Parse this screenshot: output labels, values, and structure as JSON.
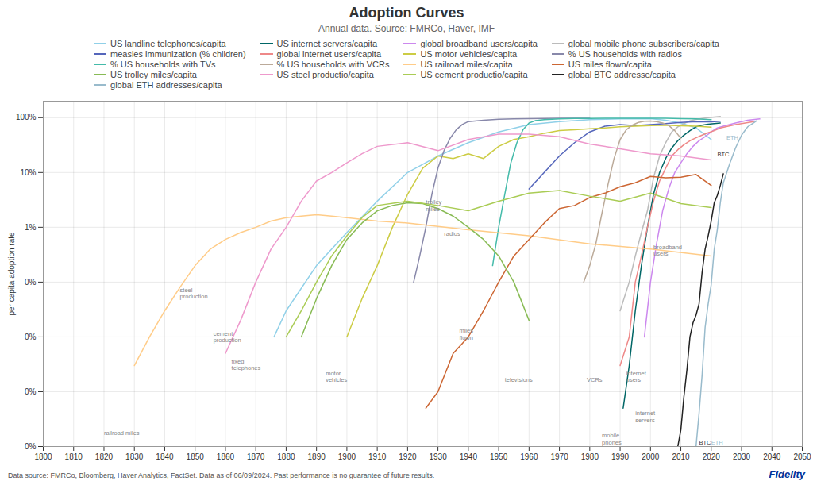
{
  "chart_data": {
    "type": "line",
    "title": "Adoption Curves",
    "subtitle": "Annual data.  Source: FMRCo, Haver, IMF",
    "y_label": "per capita adoption rate",
    "footnote": "Data source: FMRCo, Bloomberg, Haver Analytics, FactSet. Data as of 06/09/2024. Past performance is no guarantee of future results.",
    "brand": "Fidelity",
    "log": "y",
    "grid": true,
    "legend": "top",
    "xlim": [
      1800,
      2050
    ],
    "xticks": [
      1800,
      1810,
      1820,
      1830,
      1840,
      1850,
      1860,
      1870,
      1880,
      1890,
      1900,
      1910,
      1920,
      1930,
      1940,
      1950,
      1960,
      1970,
      1980,
      1990,
      2000,
      2010,
      2020,
      2030,
      2040,
      2050
    ],
    "ylim": [
      1e-06,
      2.0
    ],
    "yticks": [
      {
        "value": 1e-06,
        "label": "0%"
      },
      {
        "value": 1e-05,
        "label": "0%"
      },
      {
        "value": 0.0001,
        "label": "0%"
      },
      {
        "value": 0.001,
        "label": "0%"
      },
      {
        "value": 0.01,
        "label": "1%"
      },
      {
        "value": 0.1,
        "label": "10%"
      },
      {
        "value": 1.0,
        "label": "100%"
      }
    ],
    "series": [
      {
        "name": "US landline telephones/capita",
        "color": "#90D0E8",
        "x": [
          1876,
          1880,
          1890,
          1900,
          1910,
          1920,
          1930,
          1940,
          1950,
          1960,
          1970,
          1975,
          1980,
          1985,
          1990,
          2000,
          2005,
          2010,
          2015,
          2020
        ],
        "values": [
          0.0001,
          0.0003,
          0.002,
          0.008,
          0.03,
          0.1,
          0.2,
          0.35,
          0.55,
          0.75,
          0.85,
          0.88,
          0.92,
          0.94,
          0.95,
          0.96,
          0.9,
          0.8,
          0.65,
          0.4
        ]
      },
      {
        "name": "US internet servers/capita",
        "color": "#006666",
        "x": [
          1991,
          1993,
          1995,
          1997,
          1999,
          2001,
          2003,
          2005,
          2007,
          2009,
          2011,
          2013,
          2015,
          2017,
          2019,
          2021,
          2023
        ],
        "values": [
          5e-06,
          3e-05,
          0.0003,
          0.002,
          0.01,
          0.04,
          0.1,
          0.18,
          0.28,
          0.38,
          0.48,
          0.58,
          0.68,
          0.73,
          0.76,
          0.78,
          0.8
        ]
      },
      {
        "name": "global broadband users/capita",
        "color": "#CC88EE",
        "x": [
          1998,
          2000,
          2002,
          2004,
          2006,
          2008,
          2010,
          2012,
          2014,
          2016,
          2018,
          2020,
          2022,
          2024,
          2028,
          2032,
          2036
        ],
        "values": [
          0.0001,
          0.001,
          0.005,
          0.02,
          0.05,
          0.1,
          0.15,
          0.22,
          0.3,
          0.38,
          0.45,
          0.55,
          0.65,
          0.7,
          0.8,
          0.9,
          0.95
        ]
      },
      {
        "name": "global mobile phone subscribers/capita",
        "color": "#BBBBBB",
        "x": [
          1990,
          1993,
          1995,
          1997,
          1999,
          2001,
          2003,
          2005,
          2007,
          2009,
          2011,
          2013,
          2015,
          2017,
          2019,
          2021,
          2023
        ],
        "values": [
          0.0003,
          0.001,
          0.003,
          0.008,
          0.02,
          0.08,
          0.2,
          0.35,
          0.55,
          0.68,
          0.78,
          0.88,
          0.93,
          0.97,
          1.0,
          1.03,
          1.05
        ]
      },
      {
        "name": "measles immunization (% children)",
        "color": "#5566BB",
        "x": [
          1960,
          1965,
          1970,
          1975,
          1980,
          1985,
          1990,
          1995,
          2000,
          2005,
          2010,
          2015,
          2020,
          2023
        ],
        "values": [
          0.05,
          0.1,
          0.2,
          0.35,
          0.55,
          0.7,
          0.75,
          0.72,
          0.75,
          0.78,
          0.82,
          0.85,
          0.84,
          0.86
        ]
      },
      {
        "name": "global internet users/capita",
        "color": "#EE8888",
        "x": [
          1990,
          1993,
          1995,
          1997,
          1999,
          2001,
          2003,
          2005,
          2007,
          2009,
          2011,
          2013,
          2015,
          2017,
          2019,
          2021,
          2023,
          2028,
          2034
        ],
        "values": [
          3e-05,
          0.0001,
          0.001,
          0.003,
          0.01,
          0.03,
          0.07,
          0.12,
          0.2,
          0.26,
          0.32,
          0.38,
          0.43,
          0.48,
          0.53,
          0.58,
          0.65,
          0.75,
          0.85
        ]
      },
      {
        "name": "US motor vehicles/capita",
        "color": "#CCCC44",
        "x": [
          1900,
          1905,
          1910,
          1915,
          1920,
          1925,
          1930,
          1935,
          1940,
          1945,
          1950,
          1955,
          1960,
          1965,
          1970,
          1975,
          1980,
          1985,
          1990,
          1995,
          2000,
          2005,
          2010,
          2015,
          2020
        ],
        "values": [
          0.0001,
          0.0005,
          0.002,
          0.01,
          0.04,
          0.12,
          0.2,
          0.18,
          0.22,
          0.18,
          0.3,
          0.4,
          0.45,
          0.52,
          0.58,
          0.6,
          0.63,
          0.65,
          0.68,
          0.7,
          0.72,
          0.73,
          0.71,
          0.7,
          0.67
        ]
      },
      {
        "name": "% US households with radios",
        "color": "#8888AA",
        "x": [
          1922,
          1924,
          1926,
          1928,
          1930,
          1932,
          1934,
          1936,
          1938,
          1940,
          1945,
          1950,
          1955,
          1960,
          1965,
          1970,
          1975,
          1980
        ],
        "values": [
          0.001,
          0.003,
          0.01,
          0.04,
          0.12,
          0.25,
          0.42,
          0.6,
          0.75,
          0.85,
          0.9,
          0.94,
          0.95,
          0.96,
          0.97,
          0.98,
          0.98,
          0.98
        ]
      },
      {
        "name": "% US households with TVs",
        "color": "#44BBAA",
        "x": [
          1948,
          1950,
          1952,
          1954,
          1956,
          1958,
          1960,
          1962,
          1965,
          1970,
          1975,
          1980,
          1985,
          1990,
          1995,
          2000,
          2005,
          2010,
          2015,
          2020
        ],
        "values": [
          0.002,
          0.01,
          0.04,
          0.15,
          0.35,
          0.6,
          0.8,
          0.88,
          0.92,
          0.95,
          0.97,
          0.97,
          0.98,
          0.98,
          0.98,
          0.98,
          0.98,
          0.96,
          0.95,
          0.92
        ]
      },
      {
        "name": "% US households with VCRs",
        "color": "#BBAA99",
        "x": [
          1978,
          1980,
          1982,
          1984,
          1986,
          1988,
          1990,
          1992,
          1994,
          1996,
          1998,
          2000,
          2002,
          2004,
          2006,
          2008,
          2010
        ],
        "values": [
          0.001,
          0.002,
          0.005,
          0.018,
          0.06,
          0.18,
          0.4,
          0.6,
          0.73,
          0.82,
          0.86,
          0.87,
          0.85,
          0.8,
          0.72,
          0.58,
          0.42
        ]
      },
      {
        "name": "US railroad miles/capita",
        "color": "#FFCC88",
        "x": [
          1830,
          1835,
          1840,
          1845,
          1850,
          1855,
          1860,
          1865,
          1870,
          1875,
          1880,
          1885,
          1890,
          1895,
          1900,
          1910,
          1920,
          1940,
          1960,
          1980,
          2000,
          2020
        ],
        "values": [
          3e-05,
          0.0001,
          0.0003,
          0.0008,
          0.002,
          0.004,
          0.006,
          0.008,
          0.01,
          0.013,
          0.015,
          0.016,
          0.017,
          0.016,
          0.015,
          0.013,
          0.012,
          0.009,
          0.007,
          0.005,
          0.004,
          0.003
        ]
      },
      {
        "name": "US miles flown/capita",
        "color": "#CC6633",
        "x": [
          1926,
          1930,
          1935,
          1940,
          1945,
          1950,
          1955,
          1960,
          1965,
          1970,
          1975,
          1980,
          1985,
          1990,
          1995,
          2000,
          2005,
          2010,
          2015,
          2020
        ],
        "values": [
          5e-06,
          1e-05,
          5e-05,
          0.0001,
          0.0003,
          0.001,
          0.003,
          0.006,
          0.012,
          0.022,
          0.025,
          0.035,
          0.042,
          0.055,
          0.065,
          0.085,
          0.08,
          0.082,
          0.092,
          0.058
        ]
      },
      {
        "name": "US trolley miles/capita",
        "color": "#88BB55",
        "x": [
          1885,
          1890,
          1895,
          1900,
          1905,
          1910,
          1915,
          1920,
          1925,
          1930,
          1935,
          1940,
          1945,
          1950,
          1955,
          1960
        ],
        "values": [
          0.0001,
          0.0005,
          0.002,
          0.006,
          0.012,
          0.02,
          0.025,
          0.028,
          0.027,
          0.022,
          0.016,
          0.01,
          0.006,
          0.003,
          0.001,
          0.0002
        ]
      },
      {
        "name": "US steel productio/capita",
        "color": "#EE99CC",
        "x": [
          1860,
          1865,
          1870,
          1875,
          1880,
          1885,
          1890,
          1895,
          1900,
          1905,
          1910,
          1920,
          1930,
          1940,
          1950,
          1960,
          1970,
          1980,
          1990,
          2000,
          2010,
          2020
        ],
        "values": [
          5e-05,
          0.0002,
          0.001,
          0.004,
          0.01,
          0.03,
          0.07,
          0.1,
          0.15,
          0.22,
          0.3,
          0.35,
          0.25,
          0.4,
          0.5,
          0.5,
          0.45,
          0.33,
          0.27,
          0.22,
          0.2,
          0.17
        ]
      },
      {
        "name": "US cement productio/capita",
        "color": "#AACC55",
        "x": [
          1880,
          1885,
          1890,
          1895,
          1900,
          1905,
          1910,
          1920,
          1930,
          1940,
          1950,
          1960,
          1970,
          1980,
          1990,
          2000,
          2010,
          2020
        ],
        "values": [
          0.0001,
          0.0003,
          0.001,
          0.003,
          0.007,
          0.015,
          0.025,
          0.03,
          0.025,
          0.02,
          0.03,
          0.042,
          0.047,
          0.037,
          0.03,
          0.042,
          0.027,
          0.023
        ]
      },
      {
        "name": "global BTC addresse/capita",
        "color": "#222222",
        "x": [
          2009,
          2010,
          2011,
          2012,
          2013,
          2014,
          2015,
          2016,
          2017,
          2018,
          2019,
          2020,
          2021,
          2022,
          2023,
          2024
        ],
        "values": [
          1e-06,
          2e-06,
          8e-06,
          2.5e-05,
          0.0001,
          0.00018,
          0.00025,
          0.0004,
          0.0015,
          0.004,
          0.007,
          0.013,
          0.028,
          0.038,
          0.058,
          0.095
        ]
      },
      {
        "name": "global ETH addresses/capita",
        "color": "#99BBCC",
        "x": [
          2015,
          2016,
          2017,
          2018,
          2019,
          2020,
          2021,
          2022,
          2023,
          2024,
          2026,
          2028,
          2030,
          2032,
          2035
        ],
        "values": [
          1e-06,
          4e-06,
          2e-05,
          0.00015,
          0.0004,
          0.0009,
          0.004,
          0.009,
          0.028,
          0.065,
          0.14,
          0.28,
          0.48,
          0.68,
          0.88
        ]
      }
    ],
    "annotations": [
      {
        "text": "railroad miles",
        "x": 1820,
        "y": 1.6e-06,
        "color": "#888888"
      },
      {
        "text": "steel\nproduction",
        "x": 1845,
        "y": 0.0005,
        "color": "#888888"
      },
      {
        "text": "cement\nproduction",
        "x": 1856,
        "y": 8e-05,
        "color": "#888888"
      },
      {
        "text": "fixed\ntelephones",
        "x": 1862,
        "y": 2.5e-05,
        "color": "#888888"
      },
      {
        "text": "motor\nvehicles",
        "x": 1893,
        "y": 1.5e-05,
        "color": "#888888"
      },
      {
        "text": "trolley\nmiles",
        "x": 1926,
        "y": 0.02,
        "color": "#888888"
      },
      {
        "text": "radios",
        "x": 1932,
        "y": 0.007,
        "color": "#888888"
      },
      {
        "text": "miles\nflown",
        "x": 1937,
        "y": 9e-05,
        "color": "#888888"
      },
      {
        "text": "televisions",
        "x": 1952,
        "y": 1.5e-05,
        "color": "#888888"
      },
      {
        "text": "VCRs",
        "x": 1979,
        "y": 1.5e-05,
        "color": "#888888"
      },
      {
        "text": "internet\nusers",
        "x": 1992,
        "y": 1.5e-05,
        "color": "#888888"
      },
      {
        "text": "internet\nservers",
        "x": 1995,
        "y": 2.8e-06,
        "color": "#888888"
      },
      {
        "text": "mobile\nphones",
        "x": 1984,
        "y": 1.1e-06,
        "color": "#888888"
      },
      {
        "text": "broadband\nusers",
        "x": 2001,
        "y": 0.003,
        "color": "#888888"
      },
      {
        "text": "BTC",
        "x": 2016,
        "y": 1.1e-06,
        "color": "#333333"
      },
      {
        "text": "ETH",
        "x": 2020,
        "y": 1.1e-06,
        "color": "#99BBCC"
      },
      {
        "text": "BTC",
        "x": 2022,
        "y": 0.2,
        "color": "#333333"
      },
      {
        "text": "ETH",
        "x": 2025,
        "y": 0.4,
        "color": "#99BBCC"
      }
    ]
  }
}
